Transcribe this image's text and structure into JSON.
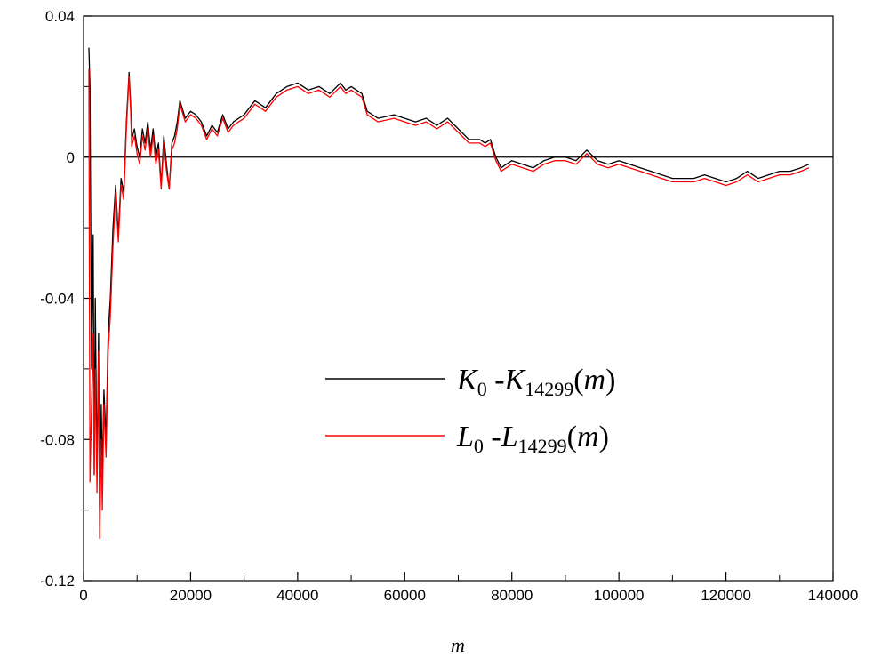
{
  "chart_data": {
    "type": "line",
    "xlabel": "m",
    "ylabel": "",
    "xlim": [
      0,
      140000
    ],
    "ylim": [
      -0.12,
      0.04
    ],
    "x_ticks": [
      0,
      20000,
      40000,
      60000,
      80000,
      100000,
      120000,
      140000
    ],
    "x_tick_labels": [
      "0",
      "20000",
      "40000",
      "60000",
      "80000",
      "100000",
      "120000",
      "140000"
    ],
    "y_ticks": [
      0.04,
      0,
      -0.04,
      -0.08,
      -0.12
    ],
    "y_tick_labels": [
      "0.04",
      "0",
      "-0.04",
      "-0.08",
      "-0.12"
    ],
    "reference_line_y": 0,
    "grid": false,
    "legend_position": "center-right",
    "series": [
      {
        "legend": {
          "a": "K",
          "a_sub": "0",
          "b": "K",
          "b_sub": "14299",
          "arg": "m"
        },
        "color": "#000000",
        "x": [
          1000,
          1200,
          1500,
          1800,
          2000,
          2200,
          2500,
          2800,
          3000,
          3300,
          3500,
          3800,
          4200,
          4600,
          5000,
          5500,
          6000,
          6500,
          7000,
          7500,
          8000,
          8500,
          8800,
          9000,
          9500,
          10000,
          10500,
          11000,
          11500,
          12000,
          12500,
          13000,
          13500,
          14000,
          14500,
          15000,
          15500,
          16000,
          16500,
          17000,
          17500,
          18000,
          19000,
          20000,
          21000,
          22000,
          23000,
          24000,
          25000,
          26000,
          27000,
          28000,
          30000,
          32000,
          34000,
          36000,
          38000,
          40000,
          42000,
          44000,
          46000,
          48000,
          49000,
          50000,
          52000,
          53000,
          55000,
          58000,
          60000,
          62000,
          64000,
          66000,
          68000,
          70000,
          72000,
          74000,
          75000,
          76000,
          77000,
          78000,
          80000,
          82000,
          84000,
          86000,
          88000,
          90000,
          92000,
          94000,
          96000,
          98000,
          100000,
          102000,
          104000,
          106000,
          108000,
          110000,
          112000,
          114000,
          116000,
          118000,
          120000,
          122000,
          124000,
          126000,
          128000,
          130000,
          132000,
          134000,
          135500
        ],
        "y": [
          0.031,
          0.02,
          -0.06,
          -0.022,
          -0.09,
          -0.04,
          -0.09,
          -0.05,
          -0.1,
          -0.07,
          -0.09,
          -0.066,
          -0.08,
          -0.05,
          -0.04,
          -0.02,
          -0.008,
          -0.022,
          -0.006,
          -0.01,
          0.01,
          0.024,
          0.015,
          0.005,
          0.008,
          0.003,
          0.0,
          0.008,
          0.004,
          0.01,
          0.002,
          0.008,
          0.0,
          0.004,
          -0.008,
          0.006,
          -0.002,
          -0.009,
          0.004,
          0.006,
          0.01,
          0.016,
          0.011,
          0.013,
          0.012,
          0.01,
          0.006,
          0.009,
          0.007,
          0.012,
          0.008,
          0.01,
          0.012,
          0.016,
          0.014,
          0.018,
          0.02,
          0.021,
          0.019,
          0.02,
          0.018,
          0.021,
          0.019,
          0.02,
          0.018,
          0.013,
          0.011,
          0.012,
          0.011,
          0.01,
          0.011,
          0.009,
          0.011,
          0.008,
          0.005,
          0.005,
          0.004,
          0.005,
          0.0,
          -0.003,
          -0.001,
          -0.002,
          -0.003,
          -0.001,
          0.0,
          0.0,
          -0.001,
          0.002,
          -0.001,
          -0.002,
          -0.001,
          -0.002,
          -0.003,
          -0.004,
          -0.005,
          -0.006,
          -0.006,
          -0.006,
          -0.005,
          -0.006,
          -0.007,
          -0.006,
          -0.004,
          -0.006,
          -0.005,
          -0.004,
          -0.004,
          -0.003,
          -0.002
        ]
      },
      {
        "legend": {
          "a": "L",
          "a_sub": "0",
          "b": "L",
          "b_sub": "14299",
          "arg": "m"
        },
        "color": "#ff0000",
        "x": [
          1000,
          1200,
          1500,
          1800,
          2000,
          2200,
          2500,
          2800,
          3000,
          3300,
          3500,
          3800,
          4200,
          4600,
          5000,
          5500,
          6000,
          6500,
          7000,
          7500,
          8000,
          8500,
          8800,
          9000,
          9500,
          10000,
          10500,
          11000,
          11500,
          12000,
          12500,
          13000,
          13500,
          14000,
          14500,
          15000,
          15500,
          16000,
          16500,
          17000,
          17500,
          18000,
          19000,
          20000,
          21000,
          22000,
          23000,
          24000,
          25000,
          26000,
          27000,
          28000,
          30000,
          32000,
          34000,
          36000,
          38000,
          40000,
          42000,
          44000,
          46000,
          48000,
          49000,
          50000,
          52000,
          53000,
          55000,
          58000,
          60000,
          62000,
          64000,
          66000,
          68000,
          70000,
          72000,
          74000,
          75000,
          76000,
          77000,
          78000,
          80000,
          82000,
          84000,
          86000,
          88000,
          90000,
          92000,
          94000,
          96000,
          98000,
          100000,
          102000,
          104000,
          106000,
          108000,
          110000,
          112000,
          114000,
          116000,
          118000,
          120000,
          122000,
          124000,
          126000,
          128000,
          130000,
          132000,
          134000,
          135500
        ],
        "y": [
          0.025,
          -0.092,
          -0.07,
          -0.05,
          -0.09,
          -0.06,
          -0.095,
          -0.055,
          -0.108,
          -0.08,
          -0.1,
          -0.07,
          -0.085,
          -0.055,
          -0.045,
          -0.025,
          -0.01,
          -0.024,
          -0.008,
          -0.012,
          0.008,
          0.023,
          0.013,
          0.003,
          0.006,
          0.001,
          -0.002,
          0.006,
          0.002,
          0.008,
          0.0,
          0.006,
          -0.002,
          0.002,
          -0.009,
          0.004,
          -0.004,
          -0.009,
          0.002,
          0.004,
          0.008,
          0.015,
          0.01,
          0.012,
          0.011,
          0.009,
          0.005,
          0.008,
          0.006,
          0.011,
          0.007,
          0.009,
          0.011,
          0.015,
          0.013,
          0.017,
          0.019,
          0.02,
          0.018,
          0.019,
          0.017,
          0.02,
          0.018,
          0.019,
          0.017,
          0.012,
          0.01,
          0.011,
          0.01,
          0.009,
          0.01,
          0.008,
          0.01,
          0.007,
          0.004,
          0.004,
          0.003,
          0.004,
          -0.001,
          -0.004,
          -0.002,
          -0.003,
          -0.004,
          -0.002,
          -0.001,
          -0.001,
          -0.002,
          0.001,
          -0.002,
          -0.003,
          -0.002,
          -0.003,
          -0.004,
          -0.005,
          -0.006,
          -0.007,
          -0.007,
          -0.007,
          -0.006,
          -0.007,
          -0.008,
          -0.007,
          -0.005,
          -0.007,
          -0.006,
          -0.005,
          -0.005,
          -0.004,
          -0.003
        ]
      }
    ]
  }
}
